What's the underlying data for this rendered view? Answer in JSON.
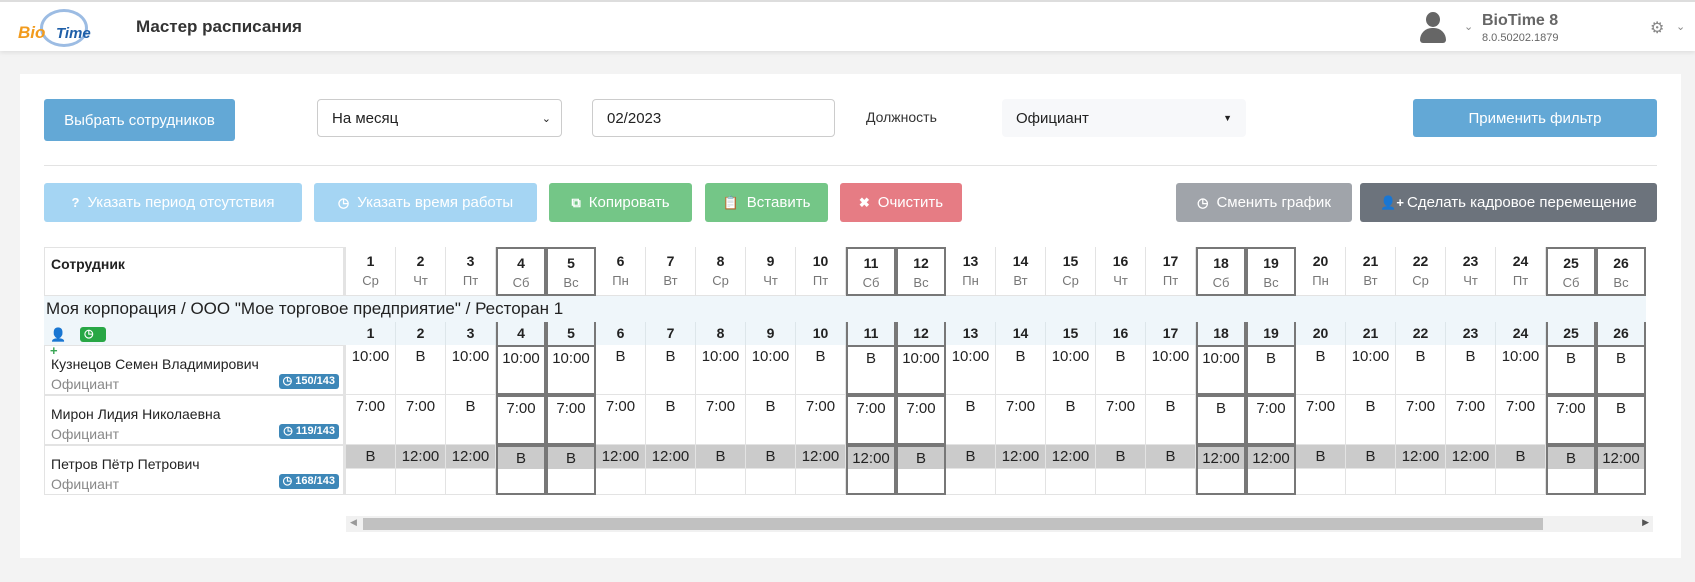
{
  "header": {
    "logo_text": "BioTime",
    "title": "Мастер расписания",
    "app_name": "BioTime 8",
    "version": "8.0.50202.1879"
  },
  "filters": {
    "select_employees": "Выбрать сотрудников",
    "period": "На месяц",
    "date": "02/2023",
    "position_label": "Должность",
    "position": "Официант",
    "apply": "Применить фильтр"
  },
  "actions": {
    "absence": "Указать период отсутствия",
    "work_time": "Указать время работы",
    "copy": "Копировать",
    "paste": "Вставить",
    "clear": "Очистить",
    "change_schedule": "Сменить график",
    "transfer": "Сделать кадровое перемещение"
  },
  "colors": {
    "primary": "#63a8d6",
    "primary_light": "#a5d5f3",
    "success": "#74c687",
    "danger": "#e67c84",
    "secondary": "#a0a4aa",
    "dark": "#6c737c"
  },
  "table": {
    "employee_header": "Сотрудник",
    "days": [
      1,
      2,
      3,
      4,
      5,
      6,
      7,
      8,
      9,
      10,
      11,
      12,
      13,
      14,
      15,
      16,
      17,
      18,
      19,
      20,
      21,
      22,
      23,
      24,
      25,
      26
    ],
    "weekdays": [
      "Ср",
      "Чт",
      "Пт",
      "Сб",
      "Вс",
      "Пн",
      "Вт",
      "Ср",
      "Чт",
      "Пт",
      "Сб",
      "Вс",
      "Пн",
      "Вт",
      "Ср",
      "Чт",
      "Пт",
      "Сб",
      "Вс",
      "Пн",
      "Вт",
      "Ср",
      "Чт",
      "Пт",
      "Сб",
      "Вс"
    ],
    "weekend_days": [
      4,
      5,
      11,
      12,
      18,
      19,
      25,
      26
    ],
    "group": {
      "title": "Моя корпорация / ООО \"Мое торговое предприятие\" / Ресторан 1",
      "hours_badge": "437"
    },
    "employees": [
      {
        "name": "Кузнецов Семен Владимирович",
        "position": "Официант",
        "hours": "150/143",
        "highlight": false,
        "shifts": [
          "10:00",
          "В",
          "10:00",
          "10:00",
          "10:00",
          "В",
          "В",
          "10:00",
          "10:00",
          "В",
          "В",
          "10:00",
          "10:00",
          "В",
          "10:00",
          "В",
          "10:00",
          "10:00",
          "В",
          "В",
          "10:00",
          "В",
          "В",
          "10:00",
          "В",
          "В"
        ]
      },
      {
        "name": "Мирон Лидия Николаевна",
        "position": "Официант",
        "hours": "119/143",
        "highlight": false,
        "shifts": [
          "7:00",
          "7:00",
          "В",
          "7:00",
          "7:00",
          "7:00",
          "В",
          "7:00",
          "В",
          "7:00",
          "7:00",
          "7:00",
          "В",
          "7:00",
          "В",
          "7:00",
          "В",
          "В",
          "7:00",
          "7:00",
          "В",
          "7:00",
          "7:00",
          "7:00",
          "7:00",
          "В"
        ]
      },
      {
        "name": "Петров Пётр Петрович",
        "position": "Официант",
        "hours": "168/143",
        "highlight": true,
        "shifts": [
          "В",
          "12:00",
          "12:00",
          "В",
          "В",
          "12:00",
          "12:00",
          "В",
          "В",
          "12:00",
          "12:00",
          "В",
          "В",
          "12:00",
          "12:00",
          "В",
          "В",
          "12:00",
          "12:00",
          "В",
          "В",
          "12:00",
          "12:00",
          "В",
          "В",
          "12:00"
        ]
      }
    ]
  }
}
